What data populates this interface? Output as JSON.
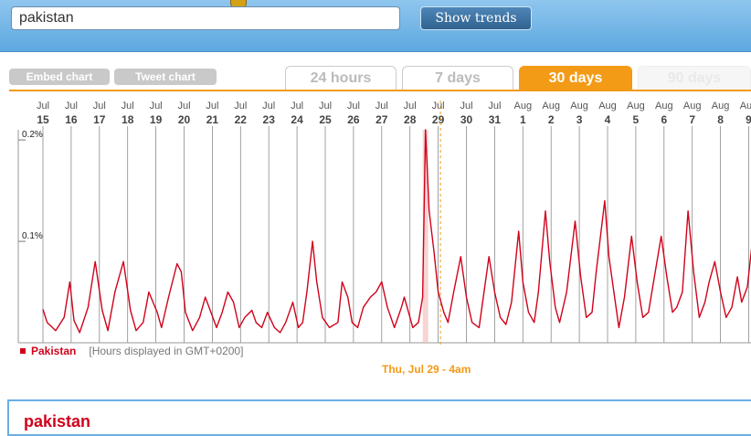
{
  "search": {
    "value": "pakistan",
    "button_label": "Show trends"
  },
  "actions": {
    "embed_label": "Embed chart",
    "tweet_label": "Tweet chart"
  },
  "tabs": [
    {
      "label": "24 hours",
      "active": false
    },
    {
      "label": "7 days",
      "active": false
    },
    {
      "label": "30 days",
      "active": true
    },
    {
      "label": "90 days",
      "active": false
    }
  ],
  "colors": {
    "accent": "#f39a16",
    "series": "#d0021b",
    "header": "#5da8e0"
  },
  "chart_data": {
    "type": "line",
    "x_labels": [
      {
        "month": "Jul",
        "day": "15"
      },
      {
        "month": "Jul",
        "day": "16"
      },
      {
        "month": "Jul",
        "day": "17"
      },
      {
        "month": "Jul",
        "day": "18"
      },
      {
        "month": "Jul",
        "day": "19"
      },
      {
        "month": "Jul",
        "day": "20"
      },
      {
        "month": "Jul",
        "day": "21"
      },
      {
        "month": "Jul",
        "day": "22"
      },
      {
        "month": "Jul",
        "day": "23"
      },
      {
        "month": "Jul",
        "day": "24"
      },
      {
        "month": "Jul",
        "day": "25"
      },
      {
        "month": "Jul",
        "day": "26"
      },
      {
        "month": "Jul",
        "day": "27"
      },
      {
        "month": "Jul",
        "day": "28"
      },
      {
        "month": "Jul",
        "day": "29"
      },
      {
        "month": "Jul",
        "day": "30"
      },
      {
        "month": "Jul",
        "day": "31"
      },
      {
        "month": "Aug",
        "day": "1"
      },
      {
        "month": "Aug",
        "day": "2"
      },
      {
        "month": "Aug",
        "day": "3"
      },
      {
        "month": "Aug",
        "day": "4"
      },
      {
        "month": "Aug",
        "day": "5"
      },
      {
        "month": "Aug",
        "day": "6"
      },
      {
        "month": "Aug",
        "day": "7"
      },
      {
        "month": "Aug",
        "day": "8"
      },
      {
        "month": "Aug",
        "day": "9"
      }
    ],
    "y_ticks": [
      {
        "value": 0.2,
        "label": "0.2%"
      },
      {
        "value": 0.1,
        "label": "0.1%"
      }
    ],
    "ylim": [
      0,
      0.21
    ],
    "series": [
      {
        "name": "Pakistan",
        "points": [
          [
            0.0,
            0.033
          ],
          [
            0.15,
            0.02
          ],
          [
            0.45,
            0.012
          ],
          [
            0.75,
            0.025
          ],
          [
            0.95,
            0.06
          ],
          [
            1.1,
            0.022
          ],
          [
            1.3,
            0.01
          ],
          [
            1.6,
            0.035
          ],
          [
            1.85,
            0.08
          ],
          [
            2.1,
            0.032
          ],
          [
            2.3,
            0.012
          ],
          [
            2.55,
            0.05
          ],
          [
            2.85,
            0.08
          ],
          [
            3.1,
            0.032
          ],
          [
            3.3,
            0.012
          ],
          [
            3.55,
            0.02
          ],
          [
            3.75,
            0.05
          ],
          [
            3.9,
            0.04
          ],
          [
            4.05,
            0.03
          ],
          [
            4.2,
            0.015
          ],
          [
            4.45,
            0.045
          ],
          [
            4.75,
            0.078
          ],
          [
            4.9,
            0.07
          ],
          [
            5.05,
            0.03
          ],
          [
            5.3,
            0.012
          ],
          [
            5.55,
            0.025
          ],
          [
            5.75,
            0.045
          ],
          [
            5.95,
            0.03
          ],
          [
            6.15,
            0.015
          ],
          [
            6.35,
            0.03
          ],
          [
            6.55,
            0.05
          ],
          [
            6.75,
            0.04
          ],
          [
            6.95,
            0.015
          ],
          [
            7.15,
            0.025
          ],
          [
            7.4,
            0.032
          ],
          [
            7.55,
            0.02
          ],
          [
            7.75,
            0.015
          ],
          [
            7.95,
            0.03
          ],
          [
            8.2,
            0.015
          ],
          [
            8.4,
            0.01
          ],
          [
            8.6,
            0.02
          ],
          [
            8.85,
            0.04
          ],
          [
            9.05,
            0.015
          ],
          [
            9.2,
            0.02
          ],
          [
            9.35,
            0.05
          ],
          [
            9.55,
            0.1
          ],
          [
            9.7,
            0.06
          ],
          [
            9.9,
            0.025
          ],
          [
            10.15,
            0.015
          ],
          [
            10.45,
            0.02
          ],
          [
            10.6,
            0.06
          ],
          [
            10.8,
            0.045
          ],
          [
            10.95,
            0.02
          ],
          [
            11.15,
            0.015
          ],
          [
            11.35,
            0.035
          ],
          [
            11.6,
            0.045
          ],
          [
            11.8,
            0.05
          ],
          [
            12.0,
            0.06
          ],
          [
            12.2,
            0.035
          ],
          [
            12.45,
            0.015
          ],
          [
            12.7,
            0.035
          ],
          [
            12.8,
            0.045
          ],
          [
            12.95,
            0.03
          ],
          [
            13.1,
            0.015
          ],
          [
            13.3,
            0.02
          ],
          [
            13.45,
            0.045
          ],
          [
            13.55,
            0.21
          ],
          [
            13.68,
            0.13
          ],
          [
            13.85,
            0.09
          ],
          [
            14.0,
            0.05
          ],
          [
            14.2,
            0.03
          ],
          [
            14.35,
            0.02
          ],
          [
            14.55,
            0.05
          ],
          [
            14.8,
            0.085
          ],
          [
            15.0,
            0.045
          ],
          [
            15.2,
            0.02
          ],
          [
            15.45,
            0.015
          ],
          [
            15.6,
            0.045
          ],
          [
            15.8,
            0.085
          ],
          [
            16.0,
            0.05
          ],
          [
            16.2,
            0.025
          ],
          [
            16.4,
            0.018
          ],
          [
            16.6,
            0.04
          ],
          [
            16.85,
            0.11
          ],
          [
            17.0,
            0.06
          ],
          [
            17.2,
            0.03
          ],
          [
            17.4,
            0.02
          ],
          [
            17.55,
            0.05
          ],
          [
            17.8,
            0.13
          ],
          [
            17.95,
            0.08
          ],
          [
            18.15,
            0.035
          ],
          [
            18.3,
            0.02
          ],
          [
            18.55,
            0.05
          ],
          [
            18.85,
            0.12
          ],
          [
            19.05,
            0.065
          ],
          [
            19.25,
            0.025
          ],
          [
            19.45,
            0.03
          ],
          [
            19.6,
            0.07
          ],
          [
            19.9,
            0.14
          ],
          [
            20.05,
            0.085
          ],
          [
            20.25,
            0.045
          ],
          [
            20.4,
            0.015
          ],
          [
            20.6,
            0.045
          ],
          [
            20.85,
            0.105
          ],
          [
            21.05,
            0.06
          ],
          [
            21.25,
            0.025
          ],
          [
            21.45,
            0.03
          ],
          [
            21.6,
            0.055
          ],
          [
            21.9,
            0.105
          ],
          [
            22.1,
            0.065
          ],
          [
            22.3,
            0.03
          ],
          [
            22.45,
            0.035
          ],
          [
            22.65,
            0.05
          ],
          [
            22.85,
            0.13
          ],
          [
            23.05,
            0.07
          ],
          [
            23.25,
            0.025
          ],
          [
            23.45,
            0.04
          ],
          [
            23.6,
            0.06
          ],
          [
            23.8,
            0.08
          ],
          [
            24.0,
            0.05
          ],
          [
            24.2,
            0.025
          ],
          [
            24.4,
            0.035
          ],
          [
            24.6,
            0.065
          ],
          [
            24.75,
            0.04
          ],
          [
            24.95,
            0.055
          ],
          [
            25.15,
            0.105
          ],
          [
            25.35,
            0.07
          ],
          [
            25.55,
            0.03
          ],
          [
            25.75,
            0.035
          ],
          [
            25.9,
            0.05
          ]
        ]
      }
    ],
    "marker": {
      "x": 14.08,
      "label": "Thu, Jul 29 - 4am"
    },
    "legend": {
      "name": "Pakistan",
      "note": "[Hours displayed in GMT+0200]"
    }
  }
}
